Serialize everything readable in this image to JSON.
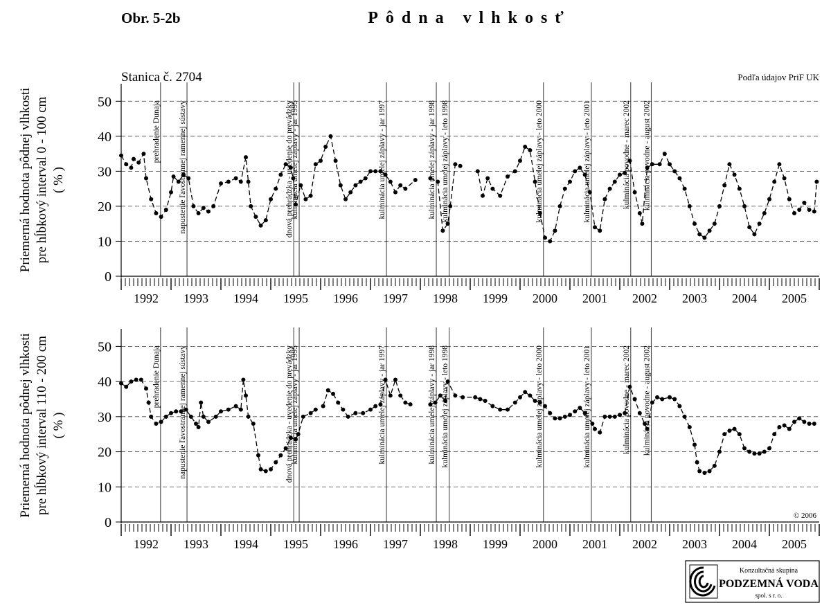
{
  "figure_label": "Obr. 5-2b",
  "title": "Pôdna vlhkosť",
  "chart_data": [
    {
      "type": "line",
      "station": "Stanica č. 2704",
      "source": "Podľa údajov PriF UK",
      "ylabel": [
        "Priemerná hodnota pôdnej vlhkosti",
        "pre hĺbkový interval 0 - 100 cm",
        "( % )"
      ],
      "color": "#000000",
      "grid": true,
      "xlim": [
        1992,
        2006
      ],
      "ylim": [
        0,
        55
      ],
      "yticks": [
        0,
        10,
        20,
        30,
        40,
        50
      ],
      "xticks": [
        {
          "value": 1992.5,
          "label": "1992"
        },
        {
          "value": 1993.5,
          "label": "1993"
        },
        {
          "value": 1994.5,
          "label": "1994"
        },
        {
          "value": 1995.5,
          "label": "1995"
        },
        {
          "value": 1996.5,
          "label": "1996"
        },
        {
          "value": 1997.5,
          "label": "1997"
        },
        {
          "value": 1998.5,
          "label": "1998"
        },
        {
          "value": 1999.5,
          "label": "1999"
        },
        {
          "value": 2000.5,
          "label": "2000"
        },
        {
          "value": 2001.5,
          "label": "2001"
        },
        {
          "value": 2002.5,
          "label": "2002"
        },
        {
          "value": 2003.5,
          "label": "2003"
        },
        {
          "value": 2004.5,
          "label": "2004"
        },
        {
          "value": 2005.5,
          "label": "2005"
        }
      ],
      "events": [
        {
          "x": 1992.79,
          "label": "prehradenie Dunaja"
        },
        {
          "x": 1993.32,
          "label": "napustenie ľavostrannej ramennej sústavy"
        },
        {
          "x": 1995.46,
          "label": "dnová prehrádzka - uvedenie do prevádzky"
        },
        {
          "x": 1995.57,
          "label": "kulminácia umelej záplavy - jar 1995"
        },
        {
          "x": 1997.32,
          "label": "kulminácia umelej záplavy - jar 1997"
        },
        {
          "x": 1998.32,
          "label": "kulminácia umelej záplavy - jar 1998"
        },
        {
          "x": 1998.58,
          "label": "kulminácia umelej záplavy - leto 1998"
        },
        {
          "x": 2000.47,
          "label": "kulminácia umelej záplavy - leto 2000"
        },
        {
          "x": 2001.43,
          "label": "kulminácia umelej záplavy - leto 2001"
        },
        {
          "x": 2002.22,
          "label": "kulminácia povodne - marec 2002"
        },
        {
          "x": 2002.63,
          "label": "kulminácia povodne - august 2002"
        }
      ],
      "x": [
        1992.0,
        1992.1,
        1992.2,
        1992.25,
        1992.35,
        1992.45,
        1992.5,
        1992.6,
        1992.7,
        1992.8,
        1992.9,
        1993.0,
        1993.05,
        1993.15,
        1993.25,
        1993.35,
        1993.45,
        1993.55,
        1993.65,
        1993.75,
        1993.85,
        1994.0,
        1994.15,
        1994.3,
        1994.4,
        1994.5,
        1994.55,
        1994.6,
        1994.7,
        1994.8,
        1994.9,
        1995.0,
        1995.1,
        1995.2,
        1995.3,
        1995.4,
        1995.45,
        1995.5,
        1995.6,
        1995.7,
        1995.8,
        1995.9,
        1996.0,
        1996.1,
        1996.2,
        1996.3,
        1996.4,
        1996.5,
        1996.6,
        1996.7,
        1996.8,
        1996.9,
        1997.0,
        1997.1,
        1997.2,
        1997.3,
        1997.4,
        1997.5,
        1997.6,
        1997.7,
        1997.9,
        1998.05,
        1998.2,
        1998.35,
        1998.45,
        1998.55,
        1998.6,
        1998.7,
        1998.8,
        1999.0,
        1999.15,
        1999.25,
        1999.35,
        1999.45,
        1999.6,
        1999.75,
        1999.9,
        2000.0,
        2000.1,
        2000.2,
        2000.3,
        2000.4,
        2000.5,
        2000.6,
        2000.7,
        2000.8,
        2000.9,
        2001.0,
        2001.1,
        2001.2,
        2001.3,
        2001.4,
        2001.5,
        2001.6,
        2001.7,
        2001.8,
        2001.9,
        2002.0,
        2002.1,
        2002.2,
        2002.3,
        2002.4,
        2002.45,
        2002.55,
        2002.65,
        2002.8,
        2002.9,
        2003.0,
        2003.1,
        2003.2,
        2003.3,
        2003.4,
        2003.5,
        2003.6,
        2003.7,
        2003.8,
        2003.9,
        2004.0,
        2004.1,
        2004.2,
        2004.3,
        2004.4,
        2004.5,
        2004.6,
        2004.7,
        2004.8,
        2004.9,
        2005.0,
        2005.1,
        2005.2,
        2005.3,
        2005.4,
        2005.5,
        2005.6,
        2005.7,
        2005.8,
        2005.9,
        2005.95
      ],
      "values": [
        34.5,
        32,
        31,
        33.5,
        32.5,
        35,
        28,
        22,
        18,
        17,
        19,
        24,
        28.5,
        27,
        29,
        28,
        20,
        18,
        19.5,
        18.5,
        20,
        26.5,
        27,
        28,
        27,
        34,
        27,
        20,
        17,
        14.5,
        16,
        22,
        25,
        29,
        32,
        31,
        28,
        20.5,
        26,
        22,
        23,
        32,
        33,
        37,
        40,
        33,
        26,
        22,
        24,
        26,
        27,
        28,
        30,
        30,
        30,
        29,
        27,
        24,
        26,
        25,
        27.5,
        null,
        28,
        27,
        13,
        15,
        20,
        32,
        31.5,
        null,
        30,
        23,
        28,
        25,
        23,
        28.5,
        30,
        33,
        37,
        36,
        27,
        18,
        11,
        10,
        13,
        20,
        25,
        27,
        30,
        31,
        29,
        24,
        14,
        13,
        22,
        25,
        27,
        29,
        29.5,
        33,
        24,
        18,
        15,
        31,
        32,
        32,
        35,
        32,
        30,
        28,
        25,
        20,
        15,
        12,
        11,
        13,
        15,
        20,
        26,
        32,
        29,
        25,
        20,
        14,
        12,
        15,
        18,
        22,
        27,
        32,
        28,
        22,
        18,
        19,
        21,
        19,
        18.5,
        27
      ]
    },
    {
      "type": "line",
      "copyright": "© 2006",
      "ylabel": [
        "Priemerná hodnota pôdnej vlhkosti",
        "pre hĺbkový interval 110 - 200 cm",
        "( % )"
      ],
      "color": "#000000",
      "grid": true,
      "xlim": [
        1992,
        2006
      ],
      "ylim": [
        0,
        55
      ],
      "yticks": [
        0,
        10,
        20,
        30,
        40,
        50
      ],
      "xticks": [
        {
          "value": 1992.5,
          "label": "1992"
        },
        {
          "value": 1993.5,
          "label": "1993"
        },
        {
          "value": 1994.5,
          "label": "1994"
        },
        {
          "value": 1995.5,
          "label": "1995"
        },
        {
          "value": 1996.5,
          "label": "1996"
        },
        {
          "value": 1997.5,
          "label": "1997"
        },
        {
          "value": 1998.5,
          "label": "1998"
        },
        {
          "value": 1999.5,
          "label": "1999"
        },
        {
          "value": 2000.5,
          "label": "2000"
        },
        {
          "value": 2001.5,
          "label": "2001"
        },
        {
          "value": 2002.5,
          "label": "2002"
        },
        {
          "value": 2003.5,
          "label": "2003"
        },
        {
          "value": 2004.5,
          "label": "2004"
        },
        {
          "value": 2005.5,
          "label": "2005"
        }
      ],
      "events": [
        {
          "x": 1992.79,
          "label": "prehradenie Dunaja"
        },
        {
          "x": 1993.32,
          "label": "napustenie ľavostrannej ramennej sústavy"
        },
        {
          "x": 1995.46,
          "label": "dnová prehrádzka - uvedenie do prevádzky"
        },
        {
          "x": 1995.57,
          "label": "kulminácia umelej záplavy - jar 1995"
        },
        {
          "x": 1997.32,
          "label": "kulminácia umelej záplavy - jar 1997"
        },
        {
          "x": 1998.32,
          "label": "kulminácia umelej záplavy - jar 1998"
        },
        {
          "x": 1998.58,
          "label": "kulminácia umelej záplavy - leto 1998"
        },
        {
          "x": 2000.47,
          "label": "kulminácia umelej záplavy - leto 2000"
        },
        {
          "x": 2001.43,
          "label": "kulminácia umelej záplavy - leto 2001"
        },
        {
          "x": 2002.22,
          "label": "kulminácia povodne - marec 2002"
        },
        {
          "x": 2002.63,
          "label": "kulminácia povodne - august 2002"
        }
      ],
      "x": [
        1992.0,
        1992.1,
        1992.2,
        1992.3,
        1992.4,
        1992.5,
        1992.55,
        1992.6,
        1992.7,
        1992.8,
        1992.9,
        1993.0,
        1993.1,
        1993.2,
        1993.3,
        1993.4,
        1993.5,
        1993.55,
        1993.6,
        1993.65,
        1993.75,
        1993.9,
        1994.0,
        1994.15,
        1994.3,
        1994.4,
        1994.45,
        1994.5,
        1994.55,
        1994.65,
        1994.75,
        1994.8,
        1994.9,
        1995.0,
        1995.1,
        1995.2,
        1995.3,
        1995.4,
        1995.5,
        1995.55,
        1995.65,
        1995.8,
        1995.9,
        1996.0,
        1996.05,
        1996.15,
        1996.25,
        1996.35,
        1996.45,
        1996.55,
        1996.7,
        1996.85,
        1997.0,
        1997.1,
        1997.2,
        1997.3,
        1997.4,
        1997.5,
        1997.6,
        1997.7,
        1997.8,
        1998.0,
        1998.2,
        1998.3,
        1998.4,
        1998.5,
        1998.55,
        1998.7,
        1998.85,
        1999.1,
        1999.2,
        1999.3,
        1999.45,
        1999.6,
        1999.75,
        1999.9,
        2000.0,
        2000.1,
        2000.2,
        2000.3,
        2000.4,
        2000.5,
        2000.6,
        2000.7,
        2000.8,
        2000.9,
        2001.0,
        2001.1,
        2001.2,
        2001.3,
        2001.45,
        2001.5,
        2001.6,
        2001.7,
        2001.8,
        2001.9,
        2002.0,
        2002.1,
        2002.2,
        2002.3,
        2002.4,
        2002.5,
        2002.55,
        2002.65,
        2002.75,
        2002.85,
        2003.0,
        2003.1,
        2003.2,
        2003.3,
        2003.4,
        2003.5,
        2003.55,
        2003.6,
        2003.7,
        2003.8,
        2003.9,
        2004.0,
        2004.1,
        2004.2,
        2004.3,
        2004.4,
        2004.5,
        2004.6,
        2004.7,
        2004.8,
        2004.9,
        2005.0,
        2005.1,
        2005.2,
        2005.3,
        2005.4,
        2005.5,
        2005.6,
        2005.7,
        2005.8,
        2005.9
      ],
      "values": [
        39.5,
        38.5,
        40,
        40.5,
        40.5,
        38,
        34,
        30,
        28,
        28.5,
        30,
        31,
        31.5,
        31.5,
        32,
        30,
        28,
        27,
        34,
        30,
        28.5,
        30,
        31.5,
        32,
        33,
        32,
        40.5,
        36,
        30,
        28,
        19,
        15,
        14.5,
        15,
        17,
        19,
        21,
        24,
        23.5,
        25,
        30,
        31,
        32,
        null,
        33,
        37.5,
        36.5,
        34,
        32,
        30,
        31,
        31,
        32,
        33,
        33.5,
        40.5,
        36,
        40.5,
        36,
        34,
        33.5,
        null,
        33.5,
        34,
        36,
        34.5,
        40,
        36,
        35.5,
        35.5,
        35,
        34.5,
        33,
        32,
        32,
        34,
        35.5,
        37,
        36,
        34.5,
        34,
        33,
        31,
        29.5,
        29.5,
        30,
        30.5,
        31.5,
        32.5,
        31,
        28,
        26.5,
        25.5,
        30,
        30,
        30,
        30.5,
        31,
        38.5,
        35,
        31,
        28,
        26.5,
        34,
        35.5,
        35,
        35.5,
        35,
        33,
        30,
        27,
        22,
        17,
        14.5,
        14,
        14.5,
        16,
        20,
        25,
        26,
        26.5,
        25,
        21,
        20,
        19.5,
        19.5,
        20,
        21,
        25,
        27,
        27.5,
        26.5,
        28.5,
        29.5,
        28.5,
        28,
        28
      ]
    }
  ],
  "logo": {
    "line1": "Konzultačná skupina",
    "line2": "PODZEMNÁ VODA",
    "line3": "spol. s r. o."
  }
}
